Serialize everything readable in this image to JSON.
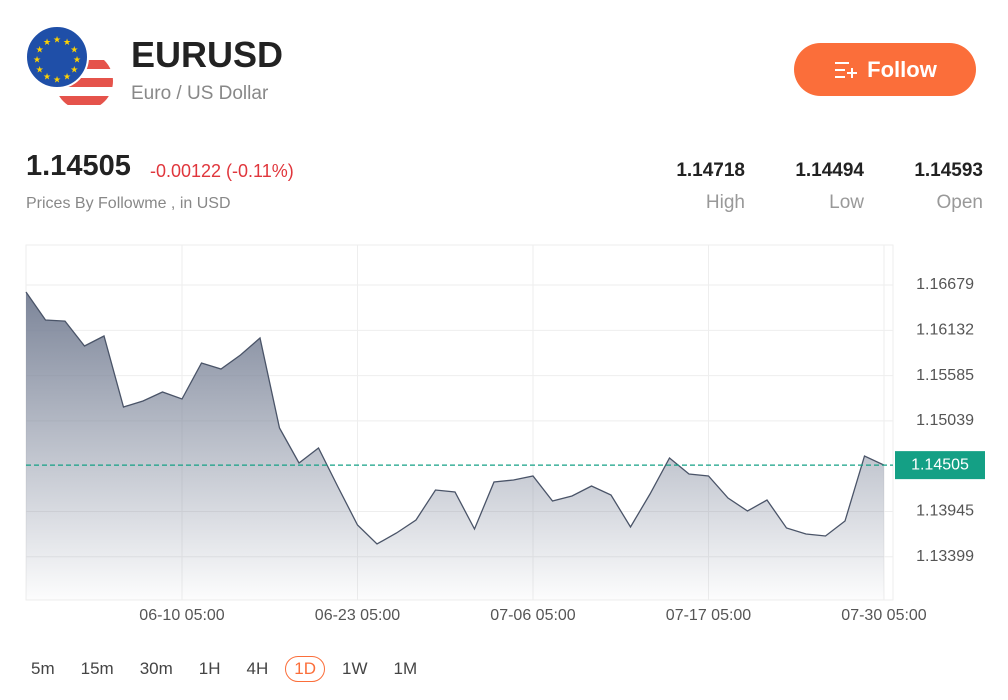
{
  "header": {
    "symbol": "EURUSD",
    "name": "Euro / US Dollar",
    "button": "Follow",
    "change": "-0.00122 (-0.11%)",
    "source": "Prices By Followme , in USD",
    "stats": [
      {
        "value": "1.14718",
        "label": "High"
      },
      {
        "value": "1.14494",
        "label": "Low"
      },
      {
        "value": "1.14593",
        "label": "Open"
      }
    ]
  },
  "chart_data": {
    "type": "area",
    "categories": [
      null,
      null,
      null,
      null,
      null,
      null,
      null,
      null,
      "06-10 05:00",
      null,
      null,
      null,
      null,
      null,
      null,
      null,
      null,
      "06-23 05:00",
      null,
      null,
      null,
      null,
      null,
      null,
      null,
      null,
      "07-06 05:00",
      null,
      null,
      null,
      null,
      null,
      null,
      null,
      null,
      "07-17 05:00",
      null,
      null,
      null,
      null,
      null,
      null,
      null,
      null,
      "07-30 05:00"
    ],
    "values": [
      1.16595,
      1.16257,
      1.16244,
      1.15943,
      1.16063,
      1.15206,
      1.15279,
      1.15388,
      1.15303,
      1.15738,
      1.15665,
      1.15834,
      1.16039,
      1.14953,
      1.14531,
      1.14712,
      1.14241,
      1.13782,
      1.13553,
      1.13686,
      1.13843,
      1.14205,
      1.14181,
      1.13734,
      1.14301,
      1.14325,
      1.14374,
      1.14072,
      1.14132,
      1.14253,
      1.14144,
      1.13758,
      1.14156,
      1.14591,
      1.14398,
      1.14374,
      1.14108,
      1.13951,
      1.14084,
      1.13746,
      1.13674,
      1.13649,
      1.13831,
      1.14615,
      1.14505
    ],
    "color": "#4a5468",
    "last_price": 1.14505,
    "last_price_color": "#14a085",
    "ylim": [
      1.12877,
      1.17162
    ],
    "yticks": [
      1.13399,
      1.13945,
      1.15039,
      1.15585,
      1.16132,
      1.16679
    ],
    "grid": true
  },
  "timeframes": {
    "items": [
      "5m",
      "15m",
      "30m",
      "1H",
      "4H",
      "1D",
      "1W",
      "1M"
    ],
    "selected": 5
  }
}
